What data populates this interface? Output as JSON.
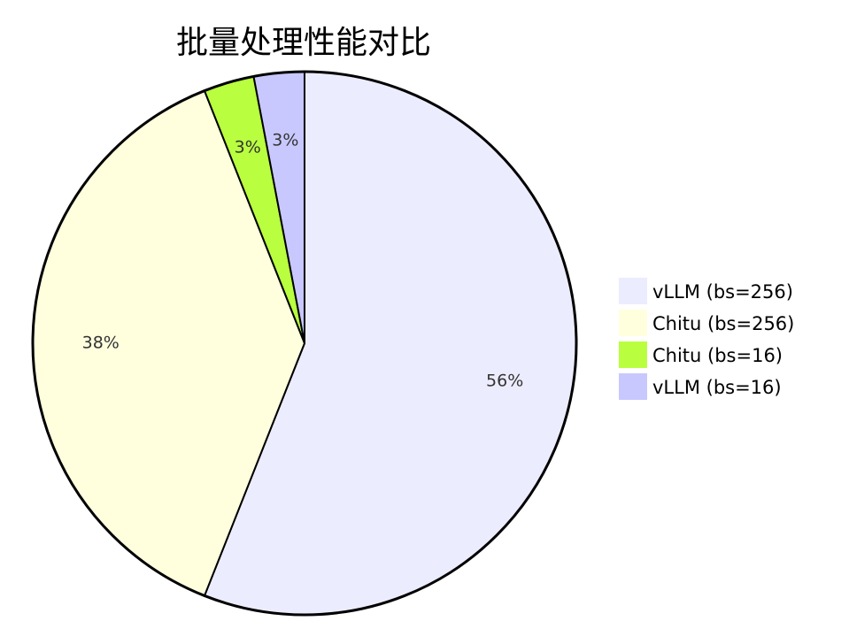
{
  "chart_data": {
    "type": "pie",
    "title": "批量处理性能对比",
    "slices": [
      {
        "label": "vLLM (bs=256)",
        "value": 56,
        "display": "56%",
        "color": "#ececff"
      },
      {
        "label": "Chitu (bs=256)",
        "value": 38,
        "display": "38%",
        "color": "#ffffde"
      },
      {
        "label": "Chitu (bs=16)",
        "value": 3,
        "display": "3%",
        "color": "#b9ff3f"
      },
      {
        "label": "vLLM (bs=16)",
        "value": 3,
        "display": "3%",
        "color": "#c8c8ff"
      }
    ],
    "legend_position": "right"
  }
}
